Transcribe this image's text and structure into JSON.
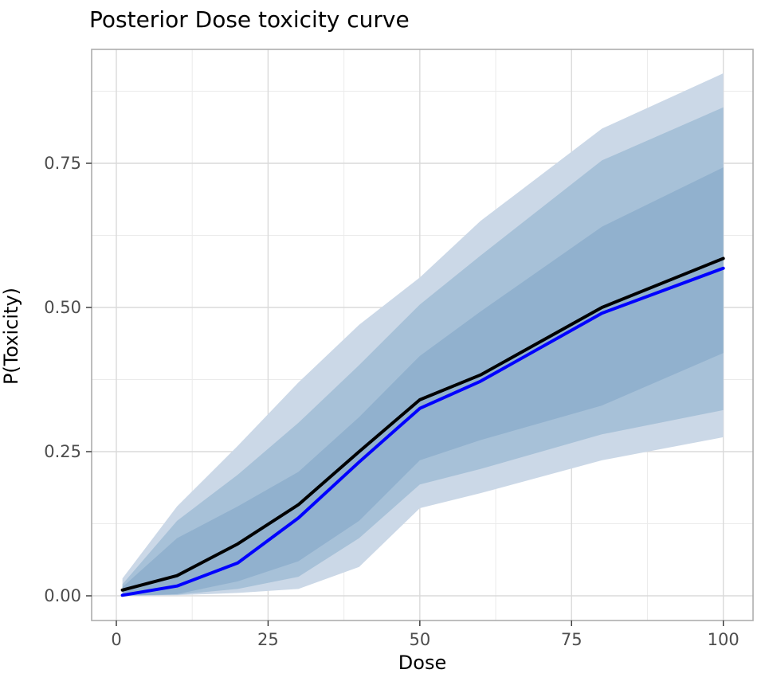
{
  "title": "Posterior Dose toxicity curve",
  "chart_data": {
    "type": "area",
    "title": "Posterior Dose toxicity curve",
    "xlabel": "Dose",
    "ylabel": "P(Toxicity)",
    "x": [
      1,
      10,
      20,
      30,
      40,
      50,
      60,
      80,
      100
    ],
    "xlim": [
      -4.07,
      104.9
    ],
    "ylim": [
      -0.0428,
      0.9475
    ],
    "x_ticks": [
      0,
      25,
      50,
      75,
      100
    ],
    "x_tick_labels": [
      "0",
      "25",
      "50",
      "75",
      "100"
    ],
    "x_minor_ticks": [
      12.5,
      37.5,
      62.5,
      87.5
    ],
    "y_ticks": [
      0.0,
      0.25,
      0.5,
      0.75
    ],
    "y_tick_labels": [
      "0.00",
      "0.25",
      "0.50",
      "0.75"
    ],
    "y_minor_ticks": [
      0.125,
      0.375,
      0.625,
      0.875
    ],
    "grid": true,
    "legend": "none",
    "bands": [
      {
        "name": "outer-credible-band",
        "color": "#cbd8e7",
        "upper": [
          0.03,
          0.155,
          0.26,
          0.37,
          0.47,
          0.552,
          0.65,
          0.81,
          0.906
        ],
        "lower": [
          0.0,
          0.001,
          0.005,
          0.012,
          0.05,
          0.152,
          0.178,
          0.235,
          0.275
        ]
      },
      {
        "name": "middle-credible-band",
        "color": "#a7c1d8",
        "upper": [
          0.02,
          0.13,
          0.21,
          0.3,
          0.4,
          0.505,
          0.59,
          0.755,
          0.847
        ],
        "lower": [
          0.0,
          0.002,
          0.012,
          0.033,
          0.1,
          0.193,
          0.22,
          0.28,
          0.322
        ]
      },
      {
        "name": "inner-credible-band",
        "color": "#91b1ce",
        "upper": [
          0.015,
          0.1,
          0.155,
          0.215,
          0.31,
          0.416,
          0.493,
          0.64,
          0.743
        ],
        "lower": [
          0.0,
          0.003,
          0.025,
          0.06,
          0.13,
          0.235,
          0.27,
          0.33,
          0.421
        ]
      }
    ],
    "series": [
      {
        "name": "posterior-mean-line",
        "color": "#000000",
        "values": [
          0.01,
          0.035,
          0.09,
          0.158,
          0.25,
          0.34,
          0.383,
          0.5,
          0.585
        ]
      },
      {
        "name": "posterior-median-line",
        "color": "#0000ff",
        "values": [
          0.001,
          0.017,
          0.057,
          0.135,
          0.232,
          0.325,
          0.372,
          0.49,
          0.568
        ]
      }
    ]
  },
  "colors": {
    "grid_major": "#dadada",
    "grid_minor": "#ebebeb",
    "panel_border": "#adadad",
    "tick_mark": "#333333",
    "tick_label": "#4d4d4d",
    "background": "#ffffff"
  }
}
